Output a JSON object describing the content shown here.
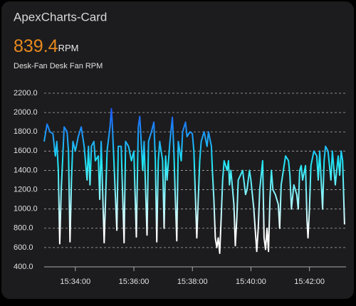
{
  "chart_data": {
    "type": "line",
    "title": "ApexCharts-Card",
    "state": 839.4,
    "unit": "RPM",
    "x": [
      "15:32:56",
      "15:33:02",
      "15:33:08",
      "15:33:14",
      "15:33:19",
      "15:33:22",
      "15:33:25",
      "15:33:28",
      "15:33:31",
      "15:33:37",
      "15:33:43",
      "15:33:46",
      "15:33:49",
      "15:33:52",
      "15:33:55",
      "15:34:00",
      "15:34:06",
      "15:34:12",
      "15:34:18",
      "15:34:24",
      "15:34:27",
      "15:34:30",
      "15:34:33",
      "15:34:38",
      "15:34:41",
      "15:34:47",
      "15:34:50",
      "15:34:53",
      "15:34:59",
      "15:35:05",
      "15:35:11",
      "15:35:14",
      "15:35:16",
      "15:35:19",
      "15:35:25",
      "15:35:28",
      "15:35:34",
      "15:35:40",
      "15:35:43",
      "15:35:49",
      "15:35:55",
      "15:36:00",
      "15:36:05",
      "15:36:09",
      "15:36:12",
      "15:36:15",
      "15:36:18",
      "15:36:21",
      "15:36:27",
      "15:36:30",
      "15:36:36",
      "15:36:41",
      "15:36:44",
      "15:36:47",
      "15:36:50",
      "15:36:53",
      "15:36:59",
      "15:37:02",
      "15:37:05",
      "15:37:08",
      "15:37:14",
      "15:37:19",
      "15:37:22",
      "15:37:25",
      "15:37:28",
      "15:37:31",
      "15:37:37",
      "15:37:40",
      "15:37:46",
      "15:37:49",
      "15:37:55",
      "15:38:00",
      "15:38:03",
      "15:38:09",
      "15:38:15",
      "15:38:18",
      "15:38:24",
      "15:38:30",
      "15:38:33",
      "15:38:39",
      "15:38:41",
      "15:38:44",
      "15:38:47",
      "15:38:50",
      "15:38:53",
      "15:38:56",
      "15:38:59",
      "15:39:02",
      "15:39:05",
      "15:39:11",
      "15:39:14",
      "15:39:16",
      "15:39:19",
      "15:39:25",
      "15:39:28",
      "15:39:31",
      "15:39:34",
      "15:39:43",
      "15:39:49",
      "15:39:52",
      "15:39:57",
      "15:40:00",
      "15:40:06",
      "15:40:12",
      "15:40:15",
      "15:40:18",
      "15:40:24",
      "15:40:27",
      "15:40:30",
      "15:40:33",
      "15:40:36",
      "15:40:39",
      "15:40:42",
      "15:40:45",
      "15:40:50",
      "15:40:56",
      "15:40:59",
      "15:41:02",
      "15:41:08",
      "15:41:11",
      "15:41:17",
      "15:41:20",
      "15:41:23",
      "15:41:28",
      "15:41:34",
      "15:41:37",
      "15:41:40",
      "15:41:43",
      "15:41:46",
      "15:41:52",
      "15:41:55",
      "15:41:57",
      "15:42:00",
      "15:42:03",
      "15:42:09",
      "15:42:15",
      "15:42:18",
      "15:42:21",
      "15:42:27",
      "15:42:30",
      "15:42:33",
      "15:42:38",
      "15:42:44",
      "15:42:47",
      "15:42:53",
      "15:42:59",
      "15:43:02",
      "15:43:05",
      "15:43:08",
      "15:43:12"
    ],
    "series": [
      {
        "name": "Desk-Fan Desk Fan RPM",
        "colors": [
          "#1a2cff",
          "#1fe6f5",
          "#ffffff"
        ],
        "values": [
          1700,
          1880,
          1800,
          1780,
          1550,
          1700,
          1400,
          640,
          1200,
          1850,
          1800,
          1600,
          660,
          1300,
          1700,
          1600,
          1750,
          1850,
          1650,
          1300,
          1650,
          1250,
          1650,
          1700,
          1500,
          1550,
          1100,
          1700,
          650,
          1600,
          1850,
          2040,
          1850,
          1500,
          780,
          1650,
          1650,
          650,
          1700,
          1650,
          1500,
          1600,
          710,
          1850,
          1960,
          1700,
          1400,
          1700,
          730,
          1700,
          1800,
          1900,
          1500,
          660,
          1500,
          1700,
          1500,
          800,
          1550,
          1300,
          1700,
          1950,
          1600,
          1100,
          670,
          1700,
          1500,
          1800,
          1900,
          1750,
          1800,
          1780,
          1600,
          700,
          1500,
          1700,
          1800,
          1650,
          1800,
          1650,
          1400,
          1100,
          700,
          600,
          700,
          540,
          900,
          1300,
          1500,
          1400,
          1500,
          1250,
          1400,
          1050,
          620,
          900,
          1300,
          1400,
          1150,
          1200,
          1400,
          1300,
          1000,
          560,
          800,
          1200,
          1500,
          700,
          580,
          800,
          560,
          1100,
          1400,
          1200,
          1150,
          1050,
          800,
          1250,
          1450,
          1550,
          1500,
          1350,
          1000,
          1250,
          1150,
          1000,
          1400,
          1450,
          1300,
          1450,
          880,
          700,
          1000,
          1450,
          1600,
          1550,
          1300,
          1600,
          1000,
          1500,
          1650,
          1600,
          1300,
          1600,
          1250,
          1550,
          1350,
          1600,
          1500,
          840
        ]
      }
    ],
    "xlim": [
      "15:32:56",
      "15:43:15"
    ],
    "xticks": [
      "15:34:00",
      "15:36:00",
      "15:38:00",
      "15:40:00",
      "15:42:00"
    ],
    "ylim": [
      400,
      2200
    ],
    "yticks": [
      {
        "value": 400,
        "label": "400.0"
      },
      {
        "value": 600,
        "label": "600.0"
      },
      {
        "value": 800,
        "label": "800.0"
      },
      {
        "value": 1000,
        "label": "1000.0"
      },
      {
        "value": 1200,
        "label": "1200.0"
      },
      {
        "value": 1400,
        "label": "1400.0"
      },
      {
        "value": 1600,
        "label": "1600.0"
      },
      {
        "value": 1800,
        "label": "1800.0"
      },
      {
        "value": 2000,
        "label": "2000.0"
      },
      {
        "value": 2200,
        "label": "2200.0"
      }
    ],
    "grid": true
  }
}
